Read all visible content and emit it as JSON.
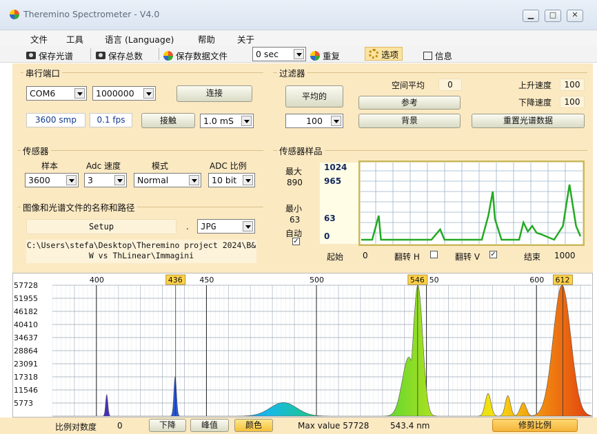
{
  "window": {
    "title": "Theremino Spectrometer - V4.0"
  },
  "menu": [
    "文件",
    "工具",
    "语言 (Language)",
    "帮助",
    "关于"
  ],
  "toolbar": {
    "save_spectrum": "保存光谱",
    "save_total": "保存总数",
    "save_data": "保存数据文件",
    "interval": "0 sec",
    "repeat": "重复",
    "options": "选项",
    "info": "信息"
  },
  "serial": {
    "title": "串行端口",
    "port": "COM6",
    "baud": "1000000",
    "connect": "连接",
    "samples": "3600 smp",
    "fps": "0.1 fps",
    "touch": "接触",
    "exposure": "1.0 mS"
  },
  "filter": {
    "title": "过滤器",
    "average": "平均的",
    "avg_value": "100",
    "spatial_label": "空间平均",
    "spatial_value": "0",
    "reference": "参考",
    "background": "背景",
    "rise_label": "上升速度",
    "rise_value": "100",
    "fall_label": "下降速度",
    "fall_value": "100",
    "reset": "重置光谱数据"
  },
  "sensor": {
    "title": "传感器",
    "sample_label": "样本",
    "sample_value": "3600",
    "adc_speed_label": "Adc 速度",
    "adc_speed_value": "3",
    "mode_label": "模式",
    "mode_value": "Normal",
    "adc_ratio_label": "ADC 比例",
    "adc_ratio_value": "10 bit"
  },
  "files": {
    "title": "图像和光谱文件的名称和路径",
    "name": "Setup",
    "dot": ".",
    "ext": "JPG",
    "path": "C:\\Users\\stefa\\Desktop\\Theremino project 2024\\B&W vs ThLinear\\Immagini"
  },
  "sample": {
    "title": "传感器样品",
    "max_label": "最大",
    "max_value": "890",
    "min_label": "最小",
    "min_value": "63",
    "auto_label": "自动",
    "scale_top": "1024",
    "scale_hi": "965",
    "scale_lo": "63",
    "scale_zero": "0",
    "start_label": "起始",
    "start_value": "0",
    "flip_h": "翻转 H",
    "flip_v": "翻转 V",
    "end_label": "结束",
    "end_value": "1000"
  },
  "chart_data": {
    "type": "line",
    "xlabel": "",
    "ylabel": "",
    "x_ticks": [
      "400",
      "450",
      "500",
      "550",
      "600"
    ],
    "x_ticks_partial": [
      "400",
      "450",
      "500",
      "",
      "600"
    ],
    "y_ticks": [
      "57728",
      "51955",
      "46182",
      "40410",
      "34637",
      "28864",
      "23091",
      "17318",
      "11546",
      "5773"
    ],
    "ylim": [
      0,
      57728
    ],
    "xlim": [
      380,
      625
    ],
    "peak_labels": [
      "436",
      "546",
      "612"
    ],
    "peaks": [
      {
        "nm": 404.7,
        "value": 9600
      },
      {
        "nm": 435.8,
        "value": 17500
      },
      {
        "nm": 485,
        "value": 6000
      },
      {
        "nm": 542,
        "value": 26000
      },
      {
        "nm": 546.1,
        "value": 57728
      },
      {
        "nm": 578,
        "value": 10000
      },
      {
        "nm": 587,
        "value": 9000
      },
      {
        "nm": 594,
        "value": 6000
      },
      {
        "nm": 611.6,
        "value": 57728
      }
    ]
  },
  "bottom": {
    "contrast_label": "比例对数度",
    "contrast_value": "0",
    "down": "下降",
    "peak": "峰值",
    "color": "颜色",
    "max_text": "Max value 57728",
    "nm_text": "543.4 nm",
    "trim": "修剪比例"
  },
  "colors": {
    "panel": "#fbe9c2",
    "accent_yellow": "#ffd24a",
    "trace": "#22aa22"
  }
}
